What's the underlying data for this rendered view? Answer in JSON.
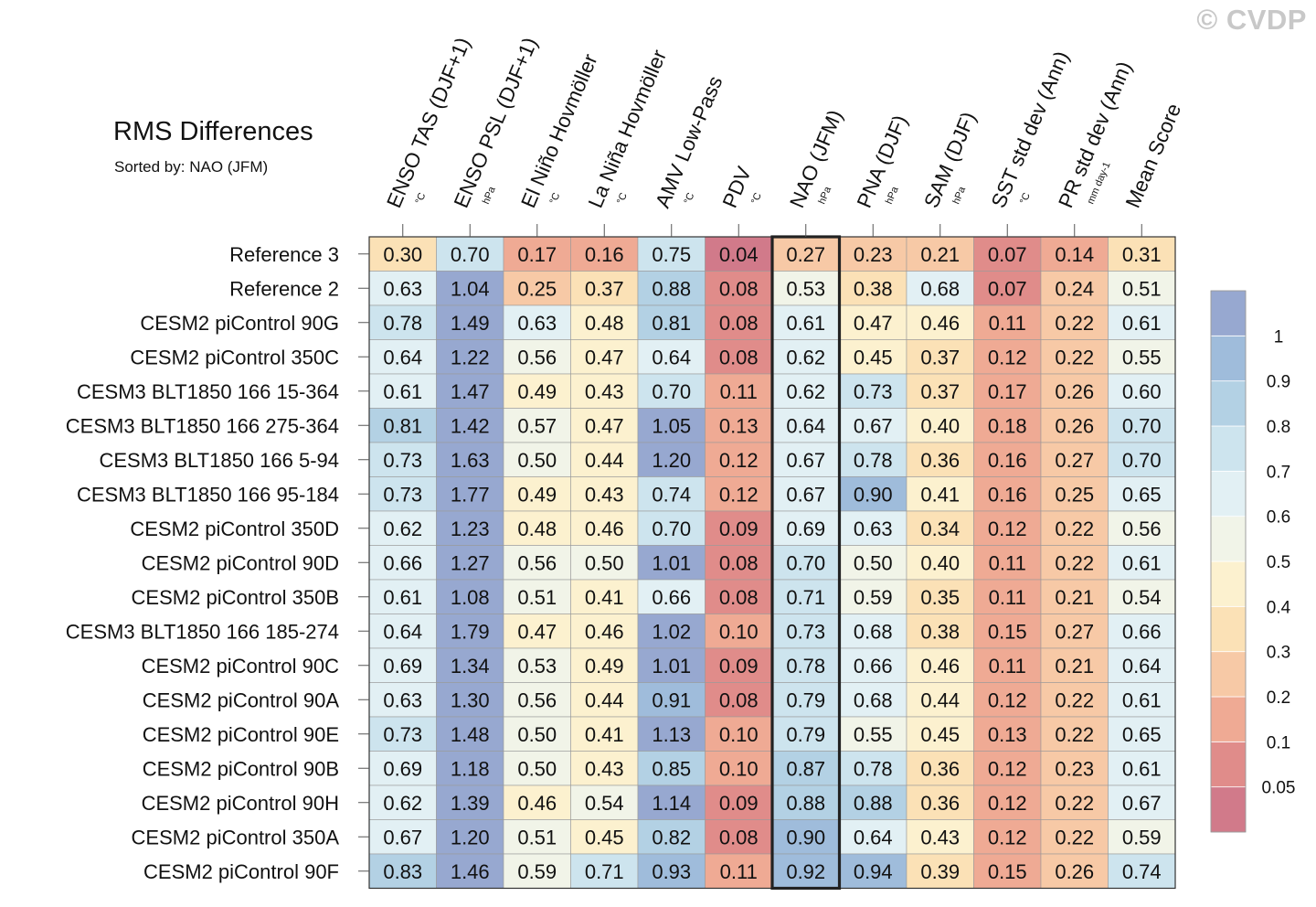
{
  "watermark": "© CVDP",
  "chart_data": {
    "type": "heatmap",
    "title": "RMS Differences",
    "subtitle": "Sorted by: NAO (JFM)",
    "highlight_column": "NAO (JFM)",
    "columns": [
      {
        "name": "ENSO TAS (DJF+1)",
        "unit": "°C"
      },
      {
        "name": "ENSO PSL (DJF+1)",
        "unit": "hPa"
      },
      {
        "name": "El Niño Hovmöller",
        "unit": "°C"
      },
      {
        "name": "La Niña Hovmöller",
        "unit": "°C"
      },
      {
        "name": "AMV Low-Pass",
        "unit": "°C"
      },
      {
        "name": "PDV",
        "unit": "°C"
      },
      {
        "name": "NAO (JFM)",
        "unit": "hPa"
      },
      {
        "name": "PNA (DJF)",
        "unit": "hPa"
      },
      {
        "name": "SAM (DJF)",
        "unit": "hPa"
      },
      {
        "name": "SST std dev (Ann)",
        "unit": "°C"
      },
      {
        "name": "PR std dev (Ann)",
        "unit": "mm day-1"
      },
      {
        "name": "Mean Score",
        "unit": ""
      }
    ],
    "rows": [
      "Reference 3",
      "Reference 2",
      "CESM2 piControl 90G",
      "CESM2 piControl 350C",
      "CESM3 BLT1850 166 15-364",
      "CESM3 BLT1850 166 275-364",
      "CESM3 BLT1850 166 5-94",
      "CESM3 BLT1850 166 95-184",
      "CESM2 piControl 350D",
      "CESM2 piControl 90D",
      "CESM2 piControl 350B",
      "CESM3 BLT1850 166 185-274",
      "CESM2 piControl 90C",
      "CESM2 piControl 90A",
      "CESM2 piControl 90E",
      "CESM2 piControl 90B",
      "CESM2 piControl 90H",
      "CESM2 piControl 350A",
      "CESM2 piControl 90F"
    ],
    "values": [
      [
        "0.30",
        "0.70",
        "0.17",
        "0.16",
        "0.75",
        "0.04",
        "0.27",
        "0.23",
        "0.21",
        "0.07",
        "0.14",
        "0.31"
      ],
      [
        "0.63",
        "1.04",
        "0.25",
        "0.37",
        "0.88",
        "0.08",
        "0.53",
        "0.38",
        "0.68",
        "0.07",
        "0.24",
        "0.51"
      ],
      [
        "0.78",
        "1.49",
        "0.63",
        "0.48",
        "0.81",
        "0.08",
        "0.61",
        "0.47",
        "0.46",
        "0.11",
        "0.22",
        "0.61"
      ],
      [
        "0.64",
        "1.22",
        "0.56",
        "0.47",
        "0.64",
        "0.08",
        "0.62",
        "0.45",
        "0.37",
        "0.12",
        "0.22",
        "0.55"
      ],
      [
        "0.61",
        "1.47",
        "0.49",
        "0.43",
        "0.70",
        "0.11",
        "0.62",
        "0.73",
        "0.37",
        "0.17",
        "0.26",
        "0.60"
      ],
      [
        "0.81",
        "1.42",
        "0.57",
        "0.47",
        "1.05",
        "0.13",
        "0.64",
        "0.67",
        "0.40",
        "0.18",
        "0.26",
        "0.70"
      ],
      [
        "0.73",
        "1.63",
        "0.50",
        "0.44",
        "1.20",
        "0.12",
        "0.67",
        "0.78",
        "0.36",
        "0.16",
        "0.27",
        "0.70"
      ],
      [
        "0.73",
        "1.77",
        "0.49",
        "0.43",
        "0.74",
        "0.12",
        "0.67",
        "0.90",
        "0.41",
        "0.16",
        "0.25",
        "0.65"
      ],
      [
        "0.62",
        "1.23",
        "0.48",
        "0.46",
        "0.70",
        "0.09",
        "0.69",
        "0.63",
        "0.34",
        "0.12",
        "0.22",
        "0.56"
      ],
      [
        "0.66",
        "1.27",
        "0.56",
        "0.50",
        "1.01",
        "0.08",
        "0.70",
        "0.50",
        "0.40",
        "0.11",
        "0.22",
        "0.61"
      ],
      [
        "0.61",
        "1.08",
        "0.51",
        "0.41",
        "0.66",
        "0.08",
        "0.71",
        "0.59",
        "0.35",
        "0.11",
        "0.21",
        "0.54"
      ],
      [
        "0.64",
        "1.79",
        "0.47",
        "0.46",
        "1.02",
        "0.10",
        "0.73",
        "0.68",
        "0.38",
        "0.15",
        "0.27",
        "0.66"
      ],
      [
        "0.69",
        "1.34",
        "0.53",
        "0.49",
        "1.01",
        "0.09",
        "0.78",
        "0.66",
        "0.46",
        "0.11",
        "0.21",
        "0.64"
      ],
      [
        "0.63",
        "1.30",
        "0.56",
        "0.44",
        "0.91",
        "0.08",
        "0.79",
        "0.68",
        "0.44",
        "0.12",
        "0.22",
        "0.61"
      ],
      [
        "0.73",
        "1.48",
        "0.50",
        "0.41",
        "1.13",
        "0.10",
        "0.79",
        "0.55",
        "0.45",
        "0.13",
        "0.22",
        "0.65"
      ],
      [
        "0.69",
        "1.18",
        "0.50",
        "0.43",
        "0.85",
        "0.10",
        "0.87",
        "0.78",
        "0.36",
        "0.12",
        "0.23",
        "0.61"
      ],
      [
        "0.62",
        "1.39",
        "0.46",
        "0.54",
        "1.14",
        "0.09",
        "0.88",
        "0.88",
        "0.36",
        "0.12",
        "0.22",
        "0.67"
      ],
      [
        "0.67",
        "1.20",
        "0.51",
        "0.45",
        "0.82",
        "0.08",
        "0.90",
        "0.64",
        "0.43",
        "0.12",
        "0.22",
        "0.59"
      ],
      [
        "0.83",
        "1.46",
        "0.59",
        "0.71",
        "0.93",
        "0.11",
        "0.92",
        "0.94",
        "0.39",
        "0.15",
        "0.26",
        "0.74"
      ]
    ],
    "colorbar": {
      "labels": [
        "1",
        "0.9",
        "0.8",
        "0.7",
        "0.6",
        "0.5",
        "0.4",
        "0.3",
        "0.2",
        "0.1",
        "0.05"
      ],
      "thresholds": [
        0.05,
        0.1,
        0.2,
        0.3,
        0.4,
        0.5,
        0.6,
        0.7,
        0.8,
        0.9,
        1.0
      ],
      "colors": [
        "#d17a8a",
        "#e08c8a",
        "#efaa94",
        "#f7c9a6",
        "#fbe1b6",
        "#fcf1cf",
        "#f1f4e8",
        "#e2f0f4",
        "#cde4ee",
        "#b3d1e4",
        "#9fbcdb",
        "#97a8d0"
      ]
    }
  }
}
